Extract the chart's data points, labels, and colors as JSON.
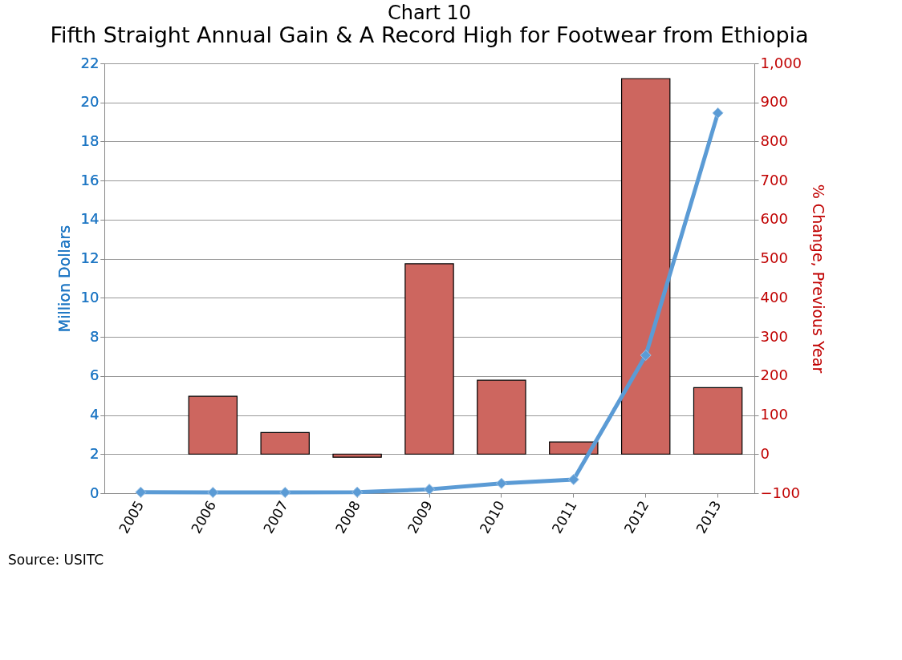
{
  "chart_data": {
    "type": "bar",
    "title": "Chart 10",
    "subtitle": "Fifth Straight Annual Gain & A Record High for Footwear from Ethiopia",
    "categories": [
      "2005",
      "2006",
      "2007",
      "2008",
      "2009",
      "2010",
      "2011",
      "2012",
      "2013"
    ],
    "series": [
      {
        "axis": "y2",
        "color": "#cd665f",
        "values": [
          null,
          148,
          55,
          -8,
          487,
          189,
          31,
          961,
          170
        ]
      },
      {
        "type": "line",
        "axis": "y",
        "color": "#5b9bd5",
        "marker": "diamond",
        "values": [
          0.05,
          0.04,
          0.04,
          0.05,
          0.2,
          0.5,
          0.7,
          7.06,
          19.46
        ]
      }
    ],
    "ylabel": "Million Dollars",
    "y2label": "% Change, Previous Year",
    "ylim": [
      0,
      22
    ],
    "yticks": [
      0,
      2,
      4,
      6,
      8,
      10,
      12,
      14,
      16,
      18,
      20,
      22
    ],
    "y2lim": [
      -100,
      1000
    ],
    "y2ticks": [
      -100,
      0,
      100,
      200,
      300,
      400,
      500,
      600,
      700,
      800,
      900,
      {
        "value": 1000,
        "label": "1,000"
      }
    ],
    "grid": "y",
    "annotations": [
      "Source:  USITC"
    ]
  }
}
